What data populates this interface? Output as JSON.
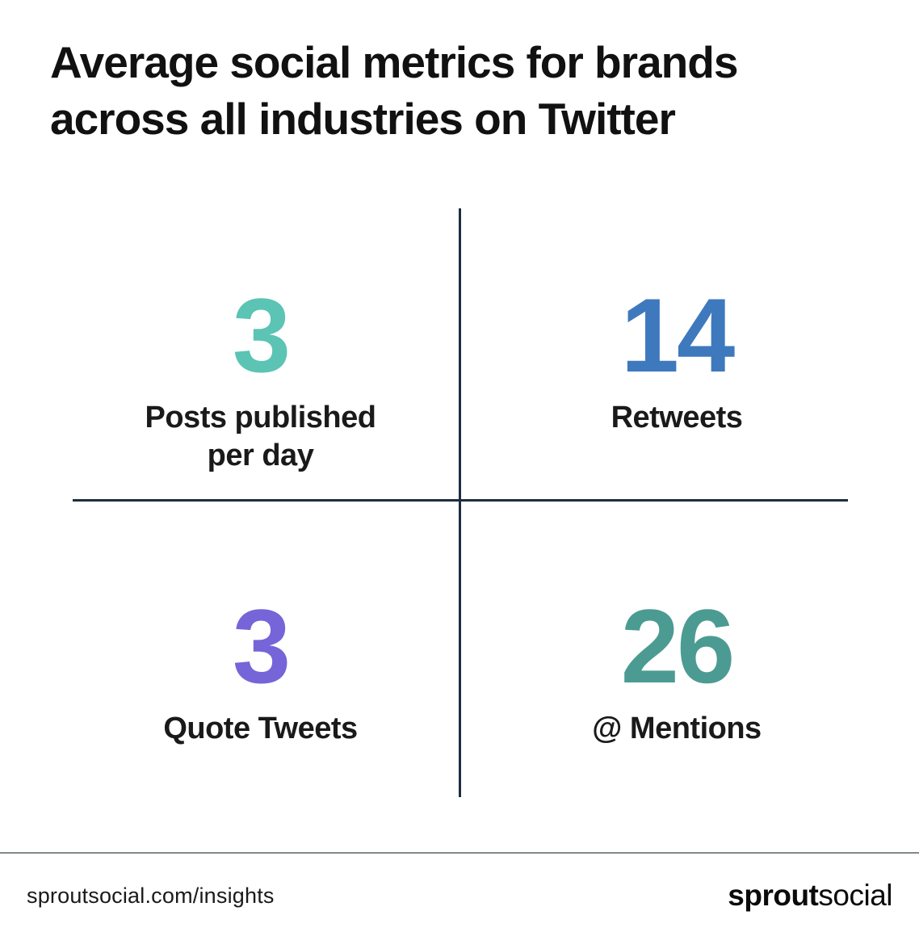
{
  "header": {
    "title_line1": "Average social metrics for brands",
    "title_line2": "across all industries on Twitter"
  },
  "chart_data": {
    "type": "table",
    "title": "Average social metrics for brands across all industries on Twitter",
    "metrics": [
      {
        "value": 3,
        "label": "Posts published per day",
        "label_lines": [
          "Posts published",
          "per day"
        ],
        "color": "#5BC4B4",
        "position": "top-left"
      },
      {
        "value": 14,
        "label": "Retweets",
        "label_lines": [
          "Retweets"
        ],
        "color": "#3E79BE",
        "position": "top-right"
      },
      {
        "value": 3,
        "label": "Quote Tweets",
        "label_lines": [
          "Quote Tweets"
        ],
        "color": "#7565D8",
        "position": "bottom-left"
      },
      {
        "value": 26,
        "label": "@ Mentions",
        "label_lines": [
          "@ Mentions"
        ],
        "color": "#4C9B92",
        "position": "bottom-right"
      }
    ]
  },
  "footer": {
    "url": "sproutsocial.com/insights",
    "logo": {
      "bold": "sprout",
      "regular": "social"
    }
  },
  "colors": {
    "background": "#FFFFFF",
    "title_text": "#111111",
    "label_text": "#1A1A1A",
    "divider": "#1E2D40",
    "footer_rule": "#7F8A8A"
  }
}
